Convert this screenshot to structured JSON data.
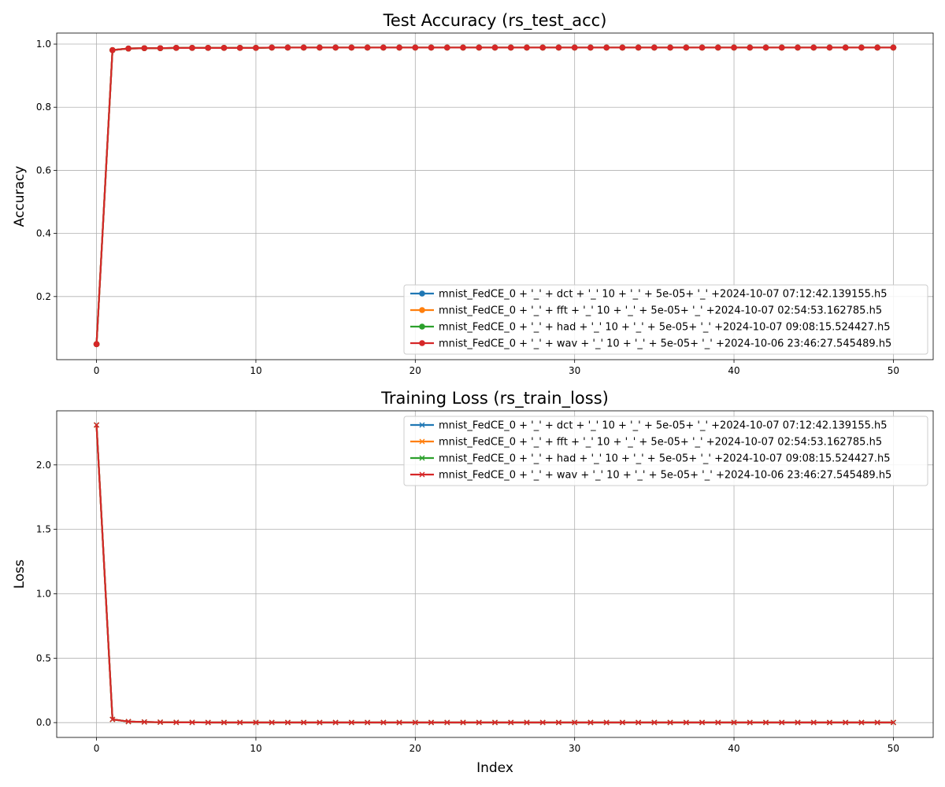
{
  "chart_data": [
    {
      "type": "line",
      "title": "Test Accuracy (rs_test_acc)",
      "xlabel": "",
      "ylabel": "Accuracy",
      "xlim": [
        -2.5,
        52.5
      ],
      "ylim": [
        0.0,
        1.035
      ],
      "xticks": [
        0,
        10,
        20,
        30,
        40,
        50
      ],
      "yticks": [
        0.2,
        0.4,
        0.6,
        0.8,
        1.0
      ],
      "xtick_labels": [
        "0",
        "10",
        "20",
        "30",
        "40",
        "50"
      ],
      "ytick_labels": [
        "0.2",
        "0.4",
        "0.6",
        "0.8",
        "1.0"
      ],
      "grid": true,
      "legend_position": "lower-right",
      "marker": "circle",
      "x_start": 0,
      "series": [
        {
          "name": "mnist_FedCE_0 + '_' + dct + '_' 10 + '_' + 5e-05+ '_' +2024-10-07 07:12:42.139155.h5",
          "color": "#1f77b4",
          "values": [
            0.049,
            0.981,
            0.986,
            0.987,
            0.987,
            0.988,
            0.988,
            0.988,
            0.988,
            0.988,
            0.988,
            0.989,
            0.989,
            0.989,
            0.989,
            0.989,
            0.989,
            0.989,
            0.989,
            0.989,
            0.989,
            0.989,
            0.989,
            0.989,
            0.989,
            0.989,
            0.989,
            0.989,
            0.989,
            0.989,
            0.989,
            0.989,
            0.989,
            0.989,
            0.989,
            0.989,
            0.989,
            0.989,
            0.989,
            0.989,
            0.989,
            0.989,
            0.989,
            0.989,
            0.989,
            0.989,
            0.989,
            0.989,
            0.989,
            0.989,
            0.989
          ]
        },
        {
          "name": "mnist_FedCE_0 + '_' + fft + '_' 10 + '_' + 5e-05+ '_' +2024-10-07 02:54:53.162785.h5",
          "color": "#ff7f0e",
          "values": [
            0.049,
            0.981,
            0.986,
            0.987,
            0.987,
            0.988,
            0.988,
            0.988,
            0.988,
            0.988,
            0.988,
            0.989,
            0.989,
            0.989,
            0.989,
            0.989,
            0.989,
            0.989,
            0.989,
            0.989,
            0.989,
            0.989,
            0.989,
            0.989,
            0.989,
            0.989,
            0.989,
            0.989,
            0.989,
            0.989,
            0.989,
            0.989,
            0.989,
            0.989,
            0.989,
            0.989,
            0.989,
            0.989,
            0.989,
            0.989,
            0.989,
            0.989,
            0.989,
            0.989,
            0.989,
            0.989,
            0.989,
            0.989,
            0.989,
            0.989,
            0.989
          ]
        },
        {
          "name": "mnist_FedCE_0 + '_' + had + '_' 10 + '_' + 5e-05+ '_' +2024-10-07 09:08:15.524427.h5",
          "color": "#2ca02c",
          "values": [
            0.049,
            0.981,
            0.986,
            0.987,
            0.987,
            0.988,
            0.988,
            0.988,
            0.988,
            0.988,
            0.988,
            0.989,
            0.989,
            0.989,
            0.989,
            0.989,
            0.989,
            0.989,
            0.989,
            0.989,
            0.989,
            0.989,
            0.989,
            0.989,
            0.989,
            0.989,
            0.989,
            0.989,
            0.989,
            0.989,
            0.989,
            0.989,
            0.989,
            0.989,
            0.989,
            0.989,
            0.989,
            0.989,
            0.989,
            0.989,
            0.989,
            0.989,
            0.989,
            0.989,
            0.989,
            0.989,
            0.989,
            0.989,
            0.989,
            0.989,
            0.989
          ]
        },
        {
          "name": "mnist_FedCE_0 + '_' + wav + '_' 10 + '_' + 5e-05+ '_' +2024-10-06 23:46:27.545489.h5",
          "color": "#d62728",
          "values": [
            0.049,
            0.981,
            0.986,
            0.987,
            0.987,
            0.988,
            0.988,
            0.988,
            0.988,
            0.988,
            0.988,
            0.989,
            0.989,
            0.989,
            0.989,
            0.989,
            0.989,
            0.989,
            0.989,
            0.989,
            0.989,
            0.989,
            0.989,
            0.989,
            0.989,
            0.989,
            0.989,
            0.989,
            0.989,
            0.989,
            0.989,
            0.989,
            0.989,
            0.989,
            0.989,
            0.989,
            0.989,
            0.989,
            0.989,
            0.989,
            0.989,
            0.989,
            0.989,
            0.989,
            0.989,
            0.989,
            0.989,
            0.989,
            0.989,
            0.989,
            0.989
          ]
        }
      ]
    },
    {
      "type": "line",
      "title": "Training Loss (rs_train_loss)",
      "xlabel": "Index",
      "ylabel": "Loss",
      "xlim": [
        -2.5,
        52.5
      ],
      "ylim": [
        -0.115,
        2.42
      ],
      "xticks": [
        0,
        10,
        20,
        30,
        40,
        50
      ],
      "yticks": [
        0.0,
        0.5,
        1.0,
        1.5,
        2.0
      ],
      "xtick_labels": [
        "0",
        "10",
        "20",
        "30",
        "40",
        "50"
      ],
      "ytick_labels": [
        "0.0",
        "0.5",
        "1.0",
        "1.5",
        "2.0"
      ],
      "grid": true,
      "legend_position": "upper-right",
      "marker": "x",
      "x_start": 0,
      "series": [
        {
          "name": "mnist_FedCE_0 + '_' + dct + '_' 10 + '_' + 5e-05+ '_' +2024-10-07 07:12:42.139155.h5",
          "color": "#1f77b4",
          "values": [
            2.31,
            0.025,
            0.008,
            0.005,
            0.003,
            0.002,
            0.002,
            0.001,
            0.001,
            0.001,
            0.001,
            0.001,
            0.001,
            0.001,
            0.001,
            0.001,
            0.001,
            0.001,
            0.001,
            0.001,
            0.001,
            0.001,
            0.001,
            0.001,
            0.001,
            0.001,
            0.001,
            0.001,
            0.001,
            0.001,
            0.001,
            0.001,
            0.001,
            0.001,
            0.001,
            0.001,
            0.001,
            0.001,
            0.001,
            0.001,
            0.001,
            0.001,
            0.001,
            0.001,
            0.001,
            0.001,
            0.001,
            0.001,
            0.001,
            0.001,
            0.001
          ]
        },
        {
          "name": "mnist_FedCE_0 + '_' + fft + '_' 10 + '_' + 5e-05+ '_' +2024-10-07 02:54:53.162785.h5",
          "color": "#ff7f0e",
          "values": [
            2.31,
            0.025,
            0.008,
            0.005,
            0.003,
            0.002,
            0.002,
            0.001,
            0.001,
            0.001,
            0.001,
            0.001,
            0.001,
            0.001,
            0.001,
            0.001,
            0.001,
            0.001,
            0.001,
            0.001,
            0.001,
            0.001,
            0.001,
            0.001,
            0.001,
            0.001,
            0.001,
            0.001,
            0.001,
            0.001,
            0.001,
            0.001,
            0.001,
            0.001,
            0.001,
            0.001,
            0.001,
            0.001,
            0.001,
            0.001,
            0.001,
            0.001,
            0.001,
            0.001,
            0.001,
            0.001,
            0.001,
            0.001,
            0.001,
            0.001,
            0.001
          ]
        },
        {
          "name": "mnist_FedCE_0 + '_' + had + '_' 10 + '_' + 5e-05+ '_' +2024-10-07 09:08:15.524427.h5",
          "color": "#2ca02c",
          "values": [
            2.31,
            0.025,
            0.008,
            0.005,
            0.003,
            0.002,
            0.002,
            0.001,
            0.001,
            0.001,
            0.001,
            0.001,
            0.001,
            0.001,
            0.001,
            0.001,
            0.001,
            0.001,
            0.001,
            0.001,
            0.001,
            0.001,
            0.001,
            0.001,
            0.001,
            0.001,
            0.001,
            0.001,
            0.001,
            0.001,
            0.001,
            0.001,
            0.001,
            0.001,
            0.001,
            0.001,
            0.001,
            0.001,
            0.001,
            0.001,
            0.001,
            0.001,
            0.001,
            0.001,
            0.001,
            0.001,
            0.001,
            0.001,
            0.001,
            0.001,
            0.001
          ]
        },
        {
          "name": "mnist_FedCE_0 + '_' + wav + '_' 10 + '_' + 5e-05+ '_' +2024-10-06 23:46:27.545489.h5",
          "color": "#d62728",
          "values": [
            2.31,
            0.025,
            0.008,
            0.005,
            0.003,
            0.002,
            0.002,
            0.001,
            0.001,
            0.001,
            0.001,
            0.001,
            0.001,
            0.001,
            0.001,
            0.001,
            0.001,
            0.001,
            0.001,
            0.001,
            0.001,
            0.001,
            0.001,
            0.001,
            0.001,
            0.001,
            0.001,
            0.001,
            0.001,
            0.001,
            0.001,
            0.001,
            0.001,
            0.001,
            0.001,
            0.001,
            0.001,
            0.001,
            0.001,
            0.001,
            0.001,
            0.001,
            0.001,
            0.001,
            0.001,
            0.001,
            0.001,
            0.001,
            0.001,
            0.001,
            0.001
          ]
        }
      ]
    }
  ]
}
